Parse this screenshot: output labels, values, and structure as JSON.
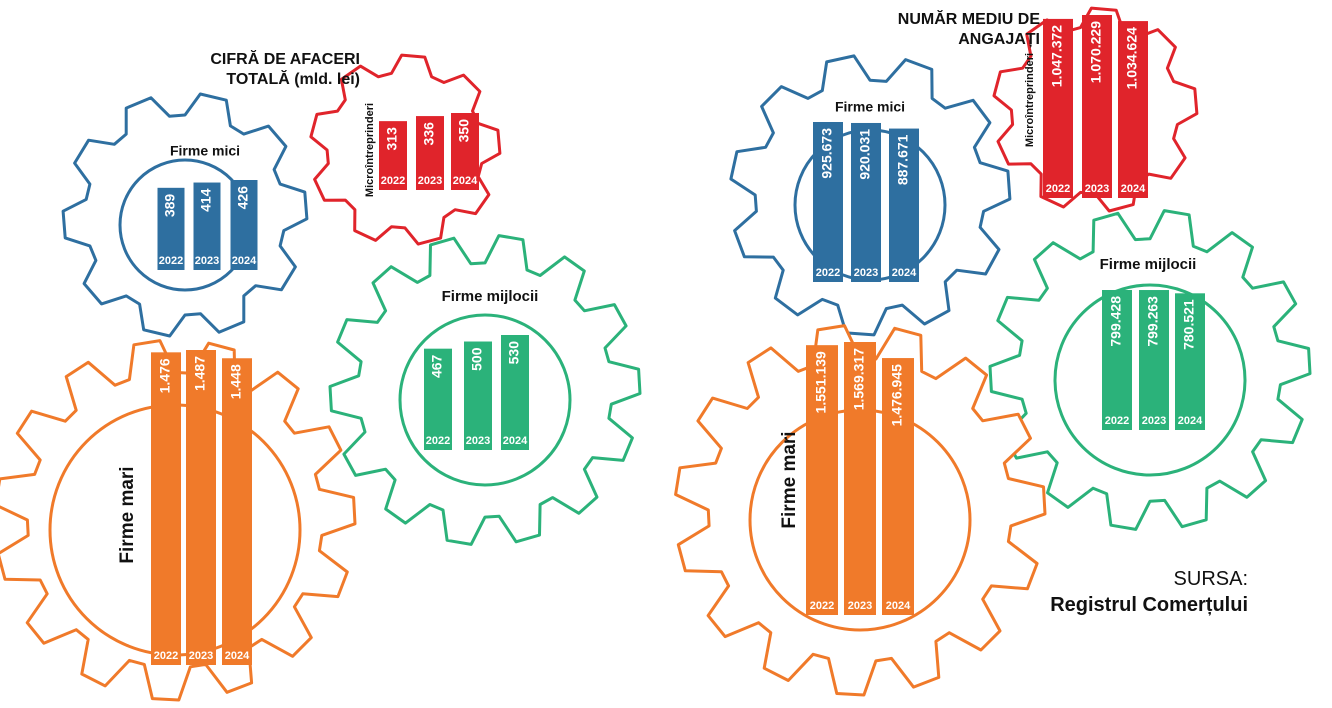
{
  "titles": [
    "CIFRĂ DE AFACERI TOTALĂ (mld. lei)",
    "NUMĂR MEDIU DE ANGAJAȚI"
  ],
  "source": {
    "label": "SURSA:",
    "name": "Registrul Comerțului"
  },
  "chart_data": [
    {
      "type": "bar",
      "title": "Firme mici",
      "color": "#2e6fa0",
      "categories": [
        "2022",
        "2023",
        "2024"
      ],
      "values": [
        389,
        414,
        426
      ]
    },
    {
      "type": "bar",
      "title": "Microîntreprinderi",
      "color": "#e0242b",
      "categories": [
        "2022",
        "2023",
        "2024"
      ],
      "values": [
        313,
        336,
        350
      ]
    },
    {
      "type": "bar",
      "title": "Firme mijlocii",
      "color": "#2bb27a",
      "categories": [
        "2022",
        "2023",
        "2024"
      ],
      "values": [
        467,
        500,
        530
      ]
    },
    {
      "type": "bar",
      "title": "Firme mari",
      "color": "#f07a2a",
      "categories": [
        "2022",
        "2023",
        "2024"
      ],
      "values": [
        1476,
        1487,
        1448
      ],
      "value_labels": [
        "1.476",
        "1.487",
        "1.448"
      ]
    },
    {
      "type": "bar",
      "title": "Microîntreprinderi",
      "color": "#e0242b",
      "categories": [
        "2022",
        "2023",
        "2024"
      ],
      "values": [
        1047372,
        1070229,
        1034624
      ],
      "value_labels": [
        "1.047.372",
        "1.070.229",
        "1.034.624"
      ]
    },
    {
      "type": "bar",
      "title": "Firme mici",
      "color": "#2e6fa0",
      "categories": [
        "2022",
        "2023",
        "2024"
      ],
      "values": [
        925673,
        920031,
        887671
      ],
      "value_labels": [
        "925.673",
        "920.031",
        "887.671"
      ]
    },
    {
      "type": "bar",
      "title": "Firme mijlocii",
      "color": "#2bb27a",
      "categories": [
        "2022",
        "2023",
        "2024"
      ],
      "values": [
        799428,
        799263,
        780521
      ],
      "value_labels": [
        "799.428",
        "799.263",
        "780.521"
      ]
    },
    {
      "type": "bar",
      "title": "Firme mari",
      "color": "#f07a2a",
      "categories": [
        "2022",
        "2023",
        "2024"
      ],
      "values": [
        1551139,
        1569317,
        1476945
      ],
      "value_labels": [
        "1.551.139",
        "1.569.317",
        "1.476.945"
      ]
    }
  ]
}
